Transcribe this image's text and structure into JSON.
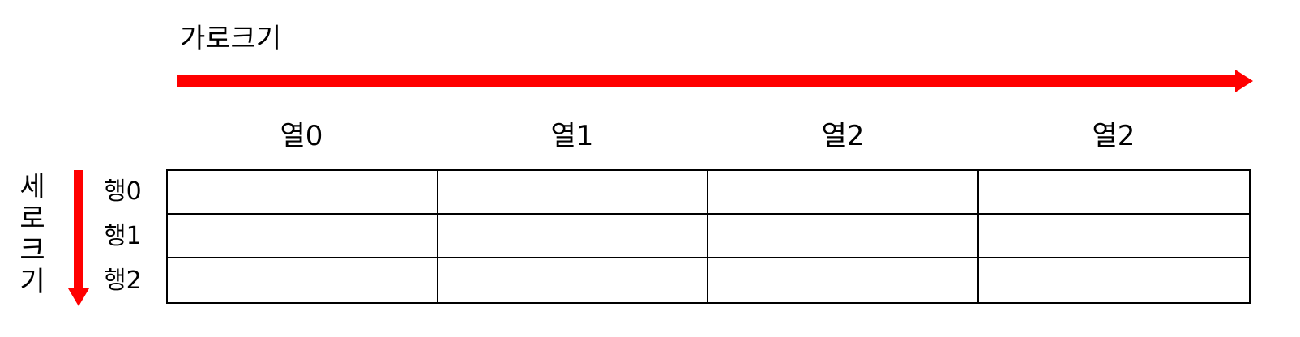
{
  "horizontal_axis": {
    "label": "가로크기",
    "arrow_color": "#ff0000"
  },
  "vertical_axis": {
    "label_chars": [
      "세",
      "로",
      "크",
      "기"
    ],
    "arrow_color": "#ff0000"
  },
  "columns": [
    "열0",
    "열1",
    "열2",
    "열2"
  ],
  "rows": [
    "행0",
    "행1",
    "행2"
  ]
}
